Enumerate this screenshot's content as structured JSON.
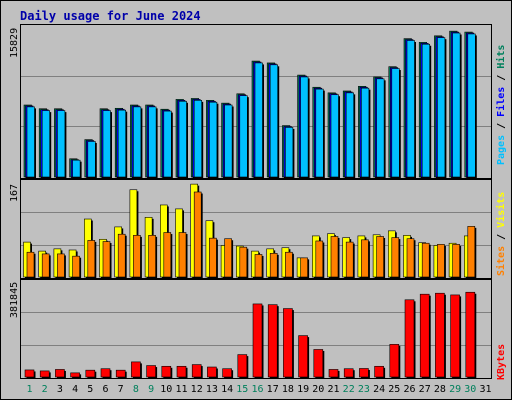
{
  "chart_data": {
    "type": "bar",
    "title": "Daily usage for June 2024",
    "x": [
      "1",
      "2",
      "3",
      "4",
      "5",
      "6",
      "7",
      "8",
      "9",
      "10",
      "11",
      "12",
      "13",
      "14",
      "15",
      "16",
      "17",
      "18",
      "19",
      "20",
      "21",
      "22",
      "23",
      "24",
      "25",
      "26",
      "27",
      "28",
      "29",
      "30",
      "31"
    ],
    "weekend_days": [
      "1",
      "2",
      "8",
      "9",
      "15",
      "16",
      "22",
      "23",
      "29",
      "30"
    ],
    "colors": {
      "background": "#c0c0c0",
      "panel": "#c0c0c0",
      "hits": "#00805c",
      "files": "#0000ff",
      "pages": "#00c0ff",
      "visits": "#ffff00",
      "sites": "#ff8000",
      "kbytes": "#ff0000",
      "weekday_label": "#000000",
      "weekend_label": "#00805c",
      "title": "#0000aa"
    },
    "top": {
      "max_label": "15829",
      "ymax": 15829,
      "labels": {
        "pages": "Pages",
        "files": "Files",
        "hits": "Hits"
      },
      "series": [
        {
          "name": "Hits",
          "values": [
            7700,
            7300,
            7300,
            1950,
            4000,
            7300,
            7350,
            7700,
            7700,
            7250,
            8300,
            8400,
            8200,
            7900,
            8900,
            12400,
            12200,
            5500,
            10900,
            9600,
            9000,
            9200,
            9700,
            10700,
            11800,
            14800,
            14400,
            15100,
            15600,
            15500,
            null
          ]
        },
        {
          "name": "Files",
          "values": [
            7600,
            7200,
            7200,
            1850,
            3900,
            7200,
            7250,
            7600,
            7600,
            7150,
            8200,
            8300,
            8100,
            7800,
            8800,
            12300,
            12100,
            5400,
            10800,
            9500,
            8900,
            9100,
            9600,
            10600,
            11700,
            14700,
            14300,
            15000,
            15500,
            15400,
            null
          ]
        },
        {
          "name": "Pages",
          "values": [
            7500,
            7100,
            7100,
            1800,
            3800,
            7100,
            7150,
            7500,
            7500,
            7050,
            8100,
            8200,
            8000,
            7700,
            8700,
            12200,
            12000,
            5300,
            10700,
            9400,
            8800,
            9000,
            9500,
            10500,
            11600,
            14600,
            14200,
            14900,
            15400,
            15300,
            null
          ]
        }
      ]
    },
    "mid": {
      "max_label": "167",
      "ymax": 167,
      "labels": {
        "sites": "Sites",
        "visits": "Visits"
      },
      "series": [
        {
          "name": "Visits",
          "values": [
            62,
            46,
            50,
            48,
            103,
            67,
            89,
            155,
            106,
            128,
            121,
            165,
            100,
            56,
            55,
            46,
            50,
            52,
            34,
            73,
            77,
            70,
            73,
            75,
            82,
            74,
            61,
            56,
            60,
            73,
            null
          ]
        },
        {
          "name": "Sites",
          "values": [
            44,
            41,
            41,
            37,
            65,
            63,
            76,
            74,
            74,
            79,
            79,
            151,
            69,
            68,
            53,
            40,
            42,
            44,
            34,
            64,
            72,
            62,
            66,
            72,
            70,
            68,
            60,
            58,
            58,
            90,
            null
          ]
        }
      ]
    },
    "bot": {
      "max_label": "381845",
      "ymax": 381845,
      "labels": {
        "kbytes": "KBytes"
      },
      "series": [
        {
          "name": "KBytes",
          "values": [
            29000,
            25000,
            31000,
            17000,
            28000,
            34000,
            28000,
            62000,
            47000,
            44000,
            44000,
            51000,
            41000,
            34000,
            92000,
            300000,
            297000,
            281000,
            170000,
            113000,
            31000,
            34000,
            35000,
            44000,
            134000,
            317000,
            340000,
            344000,
            337000,
            348000,
            null
          ]
        }
      ]
    }
  }
}
